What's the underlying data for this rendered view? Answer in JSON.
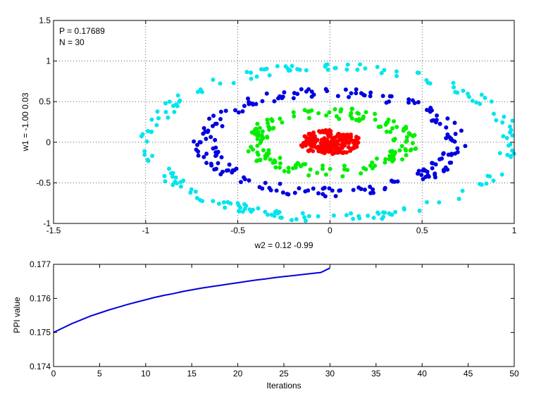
{
  "chart_data": [
    {
      "type": "scatter",
      "annotations": [
        "P = 0.17689",
        "N = 30"
      ],
      "xlabel": "w2 = 0.12  -0.99",
      "ylabel": "w1 = -1.00  0.03",
      "xlim": [
        -1.5,
        1
      ],
      "ylim": [
        -1,
        1.5
      ],
      "xticks": [
        -1.5,
        -1,
        -0.5,
        0,
        0.5,
        1
      ],
      "yticks": [
        -1,
        -0.5,
        0,
        0.5,
        1,
        1.5
      ],
      "xtick_labels": [
        "-1.5",
        "-1",
        "-0.5",
        "0",
        "0.5",
        "1"
      ],
      "ytick_labels": [
        "-1",
        "-0.5",
        "0",
        "0.5",
        "1",
        "1.5"
      ],
      "grid": "dotted",
      "series": [
        {
          "color": "#ff0000",
          "shape": "ellipse",
          "rx": 0.17,
          "ry": 0.15,
          "band": 0.0,
          "count": 190
        },
        {
          "color": "#00ee00",
          "shape": "ellipse",
          "rx": 0.41,
          "ry": 0.36,
          "band": 0.07,
          "count": 170
        },
        {
          "color": "#0000e0",
          "shape": "ellipse",
          "rx": 0.68,
          "ry": 0.62,
          "band": 0.06,
          "count": 200
        },
        {
          "color": "#00e5ee",
          "shape": "ellipse",
          "rx": 0.98,
          "ry": 0.93,
          "band": 0.05,
          "count": 190
        }
      ]
    },
    {
      "type": "line",
      "xlabel": "Iterations",
      "ylabel": "PPI value",
      "xlim": [
        0,
        50
      ],
      "ylim": [
        0.174,
        0.177
      ],
      "xticks": [
        0,
        5,
        10,
        15,
        20,
        25,
        30,
        35,
        40,
        45,
        50
      ],
      "yticks": [
        0.174,
        0.175,
        0.176,
        0.177
      ],
      "xtick_labels": [
        "0",
        "5",
        "10",
        "15",
        "20",
        "25",
        "30",
        "35",
        "40",
        "45",
        "50"
      ],
      "ytick_labels": [
        "0.174",
        "0.175",
        "0.176",
        "0.177"
      ],
      "series": [
        {
          "color": "#0000e0",
          "x": [
            0,
            1,
            2,
            3,
            4,
            5,
            6,
            7,
            8,
            9,
            10,
            11,
            12,
            13,
            14,
            15,
            16,
            17,
            18,
            19,
            20,
            21,
            22,
            23,
            24,
            25,
            26,
            27,
            28,
            29,
            30
          ],
          "y": [
            0.175,
            0.17513,
            0.17526,
            0.17537,
            0.17548,
            0.17557,
            0.17566,
            0.17574,
            0.17582,
            0.17589,
            0.17596,
            0.17603,
            0.17609,
            0.17614,
            0.1762,
            0.17625,
            0.1763,
            0.17634,
            0.17638,
            0.17642,
            0.17646,
            0.1765,
            0.17654,
            0.17657,
            0.17661,
            0.17664,
            0.17667,
            0.1767,
            0.17673,
            0.17676,
            0.17689
          ]
        }
      ]
    }
  ]
}
